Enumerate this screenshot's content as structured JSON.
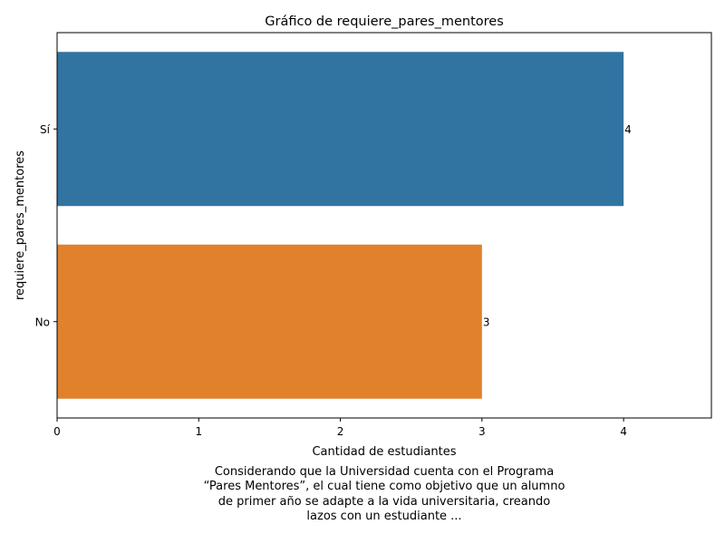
{
  "chart_data": {
    "type": "bar",
    "orientation": "horizontal",
    "title": "Gráfico de requiere_pares_mentores",
    "xlabel": "Cantidad de estudiantes",
    "ylabel": "requiere_pares_mentores",
    "categories": [
      "Sí",
      "No"
    ],
    "values": [
      4,
      3
    ],
    "data_labels": [
      "4",
      "3"
    ],
    "colors": [
      "#3274a1",
      "#e1812c"
    ],
    "xlim": [
      0,
      4.62
    ],
    "xticks": [
      0,
      1,
      2,
      3,
      4
    ],
    "xtick_labels": [
      "0",
      "1",
      "2",
      "3",
      "4"
    ],
    "grid": false,
    "legend": "none"
  },
  "caption": {
    "lines": [
      "Considerando que la Universidad cuenta con el Programa",
      "“Pares Mentores”, el cual tiene como objetivo que un alumno",
      "de primer año se adapte a la vida universitaria, creando",
      "lazos con un estudiante ..."
    ]
  }
}
